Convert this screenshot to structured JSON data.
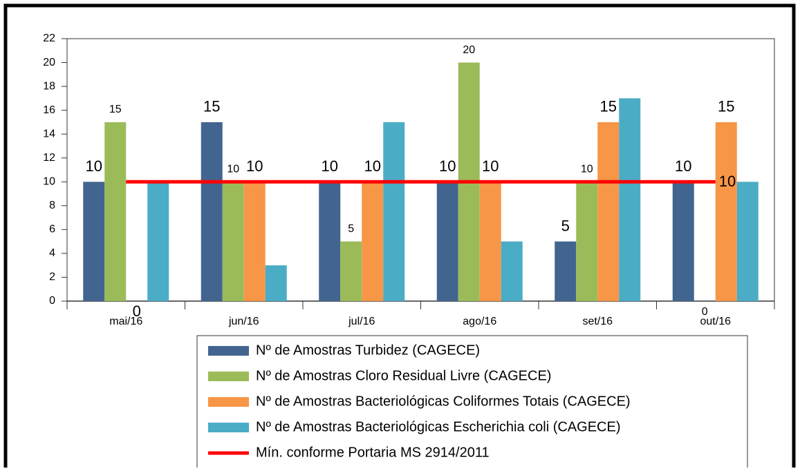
{
  "chart_data": {
    "type": "bar",
    "categories": [
      "mai/16",
      "jun/16",
      "jul/16",
      "ago/16",
      "set/16",
      "out/16"
    ],
    "series": [
      {
        "name": "Nº de Amostras Turbidez (CAGECE)",
        "color": "#426590",
        "values": [
          10,
          15,
          10,
          10,
          5,
          10
        ]
      },
      {
        "name": "Nº de Amostras Cloro Residual Livre (CAGECE)",
        "color": "#9bbb59",
        "values": [
          15,
          10,
          5,
          20,
          10,
          0
        ]
      },
      {
        "name": "Nº de Amostras Bacteriológicas Coliformes Totais (CAGECE)",
        "color": "#f79646",
        "values": [
          0,
          10,
          10,
          10,
          15,
          15
        ]
      },
      {
        "name": "Nº de Amostras Bacteriológicas Escherichia coli (CAGECE)",
        "color": "#4bacc6",
        "values": [
          10,
          3,
          15,
          5,
          17,
          10
        ]
      },
      {
        "name": "Mín. conforme Portaria MS 2914/2011",
        "type": "line",
        "color": "#ff0000",
        "values": [
          10,
          10,
          10,
          10,
          10,
          10
        ]
      }
    ],
    "ylim": [
      0,
      22
    ],
    "yticks": [
      0,
      2,
      4,
      6,
      8,
      10,
      12,
      14,
      16,
      18,
      20,
      22
    ]
  }
}
